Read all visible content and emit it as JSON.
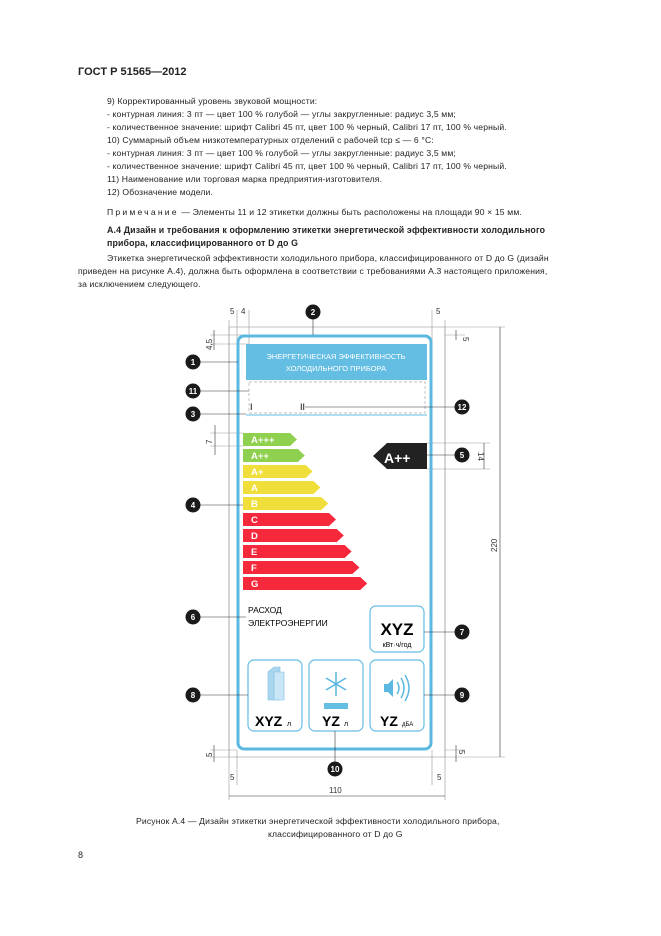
{
  "header": "ГОСТ Р 51565—2012",
  "body_lines": [
    "9)  Корректированный уровень звуковой мощности:",
    "- контурная линия: 3 пт —  цвет 100 % голубой —  углы закругленные: радиус 3,5 мм;",
    "- количественное значение: шрифт Calibri 45 пт, цвет 100 % черный, Calibri 17 пт, 100 % черный.",
    "10)  Суммарный объем низкотемпературных отделений с рабочей tср ≤ —  6 °С:",
    "- контурная линия: 3 пт —  цвет 100 % голубой —  углы закругленные: радиус 3,5 мм;",
    "- количественное значение: шрифт Calibri 45 пт, цвет 100 % черный, Calibri 17 пт, 100 % черный.",
    "11)  Наименование или торговая марка предприятия-изготовителя.",
    "12)  Обозначение модели."
  ],
  "note_label": "Примечание",
  "note_text": "— Элементы 11 и 12 этикетки должны быть расположены на площади 90 × 15 мм.",
  "section_heading": [
    "А.4  Дизайн и требования к оформлению этикетки энергетической эффективности холодильного",
    "прибора, классифицированного от D до G"
  ],
  "paragraph": [
    "Этикетка энергетической эффективности холодильного прибора, классифицированного от D до G (дизайн",
    "приведен на рисунке А.4), должна быть оформлена в соответствии с требованиями А.3 настоящего приложения,",
    "за исключением следующего."
  ],
  "figure": {
    "label_title": [
      "ЭНЕРГЕТИЧЕСКАЯ ЭФФЕКТИВНОСТЬ",
      "ХОЛОДИЛЬНОГО ПРИБОРА"
    ],
    "name_marks": [
      "I",
      "II"
    ],
    "classes": [
      {
        "label": "A+++",
        "color": "#8fd14f"
      },
      {
        "label": "A++",
        "color": "#8fd14f"
      },
      {
        "label": "A+",
        "color": "#f0de3a"
      },
      {
        "label": "A",
        "color": "#f0de3a"
      },
      {
        "label": "B",
        "color": "#f0de3a"
      },
      {
        "label": "C",
        "color": "#f5283c"
      },
      {
        "label": "D",
        "color": "#f5283c"
      },
      {
        "label": "E",
        "color": "#f5283c"
      },
      {
        "label": "F",
        "color": "#f5283c"
      },
      {
        "label": "G",
        "color": "#f5283c"
      }
    ],
    "indicator": "A++",
    "consumption_label": [
      "РАСХОД",
      "ЭЛЕКТРОЭНЕРГИИ"
    ],
    "consumption_value": "XYZ",
    "consumption_unit": "кВт·ч/год",
    "fresh_value": "XYZ",
    "fresh_unit": "л",
    "freezer_value": "YZ",
    "freezer_unit": "л",
    "noise_value": "YZ",
    "noise_unit": "дБА",
    "callouts": [
      "1",
      "2",
      "3",
      "4",
      "5",
      "6",
      "7",
      "8",
      "9",
      "10",
      "11",
      "12"
    ],
    "dims": {
      "d5": "5",
      "d4": "4",
      "d45": "4,5",
      "d7": "7",
      "d14": "14",
      "d220": "220",
      "d110": "110"
    },
    "colors": {
      "frame": "#5bb8e0",
      "indicator": "#222222"
    }
  },
  "caption": [
    "Рисунок А.4 —  Дизайн этикетки энергетической эффективности холодильного прибора,",
    "классифицированного от D до G"
  ],
  "page_number": "8"
}
